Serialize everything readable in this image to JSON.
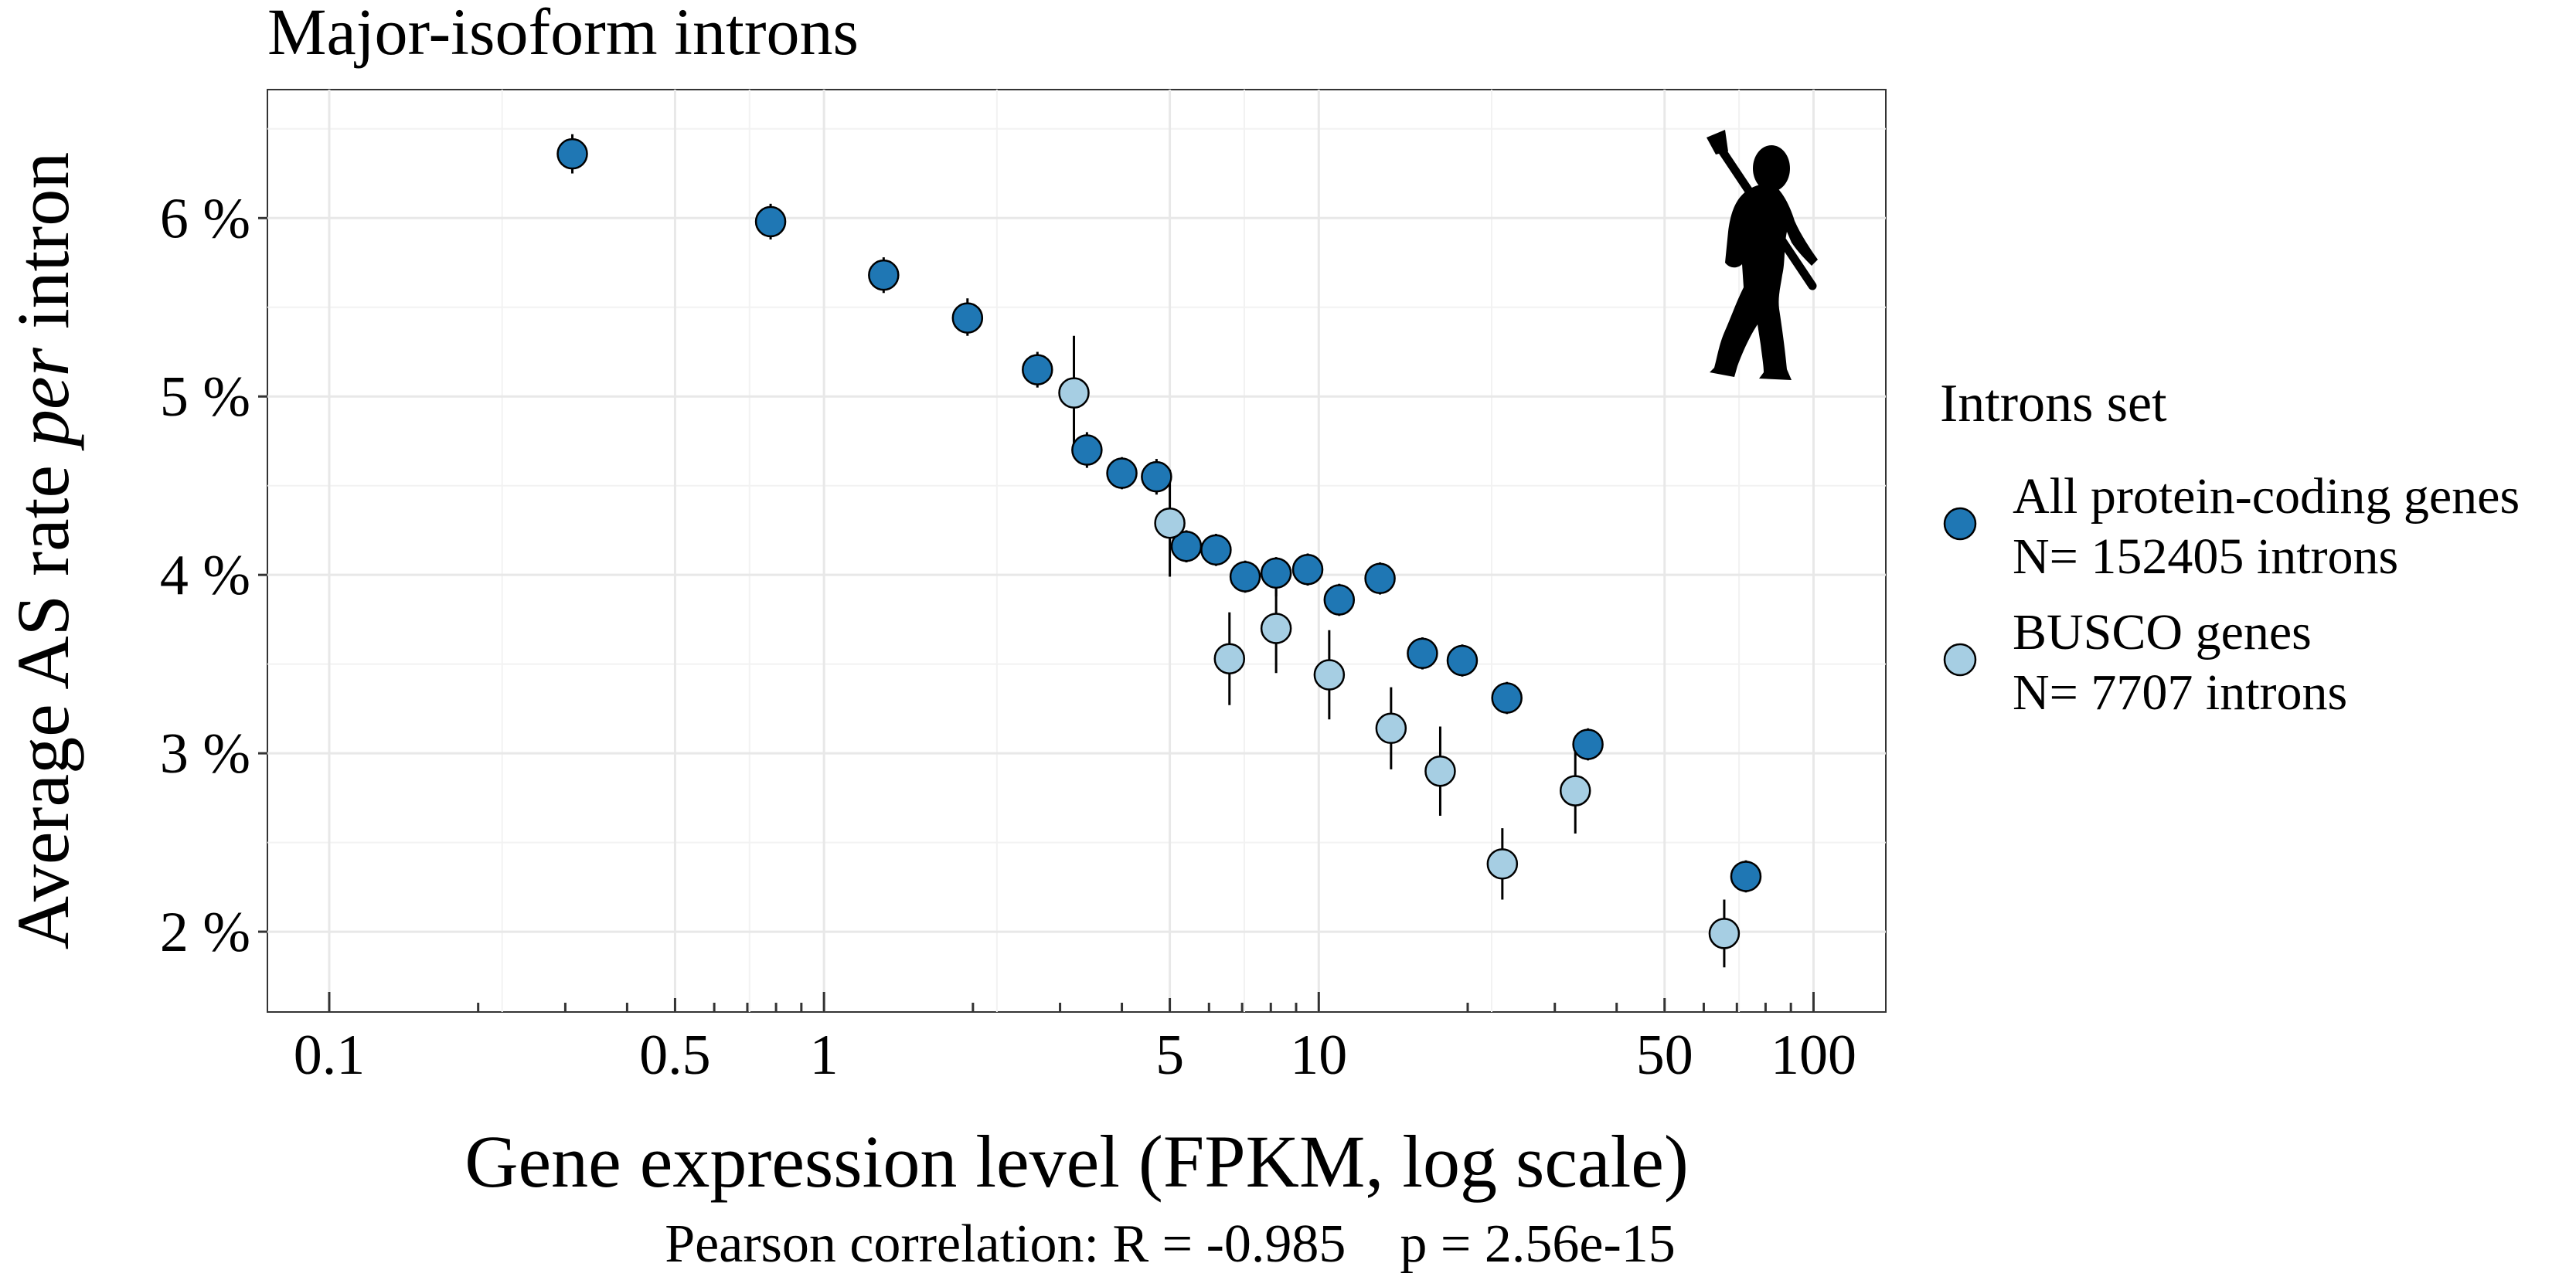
{
  "chart_data": {
    "type": "scatter",
    "title": "Major-isoform introns",
    "xlabel": "Gene expression level (FPKM, log scale)",
    "ylabel_parts": [
      "Average AS rate ",
      "per",
      " intron"
    ],
    "x_scale": "log10",
    "xlim": [
      0.075,
      140
    ],
    "ylim": [
      1.55,
      6.72
    ],
    "x_ticks": [
      0.1,
      0.5,
      1,
      5,
      10,
      50,
      100
    ],
    "x_tick_labels": [
      "0.1",
      "0.5",
      "1",
      "5",
      "10",
      "50",
      "100"
    ],
    "y_ticks": [
      2,
      3,
      4,
      5,
      6
    ],
    "y_tick_labels": [
      "2 %",
      "3 %",
      "4 %",
      "5 %",
      "6 %"
    ],
    "grid": true,
    "legend_position": "right",
    "legend_title": "Introns set",
    "footnote": "Pearson correlation: R = -0.985    p = 2.56e-15",
    "series": [
      {
        "name": "All protein-coding genes",
        "legend_lines": [
          "All protein-coding genes",
          "N= 152405 introns"
        ],
        "color": "#1f77b4",
        "points": [
          {
            "x": 0.31,
            "y": 6.36,
            "lo": 6.25,
            "hi": 6.47
          },
          {
            "x": 0.78,
            "y": 5.98,
            "lo": 5.88,
            "hi": 6.08
          },
          {
            "x": 1.32,
            "y": 5.68,
            "lo": 5.58,
            "hi": 5.78
          },
          {
            "x": 1.95,
            "y": 5.44,
            "lo": 5.34,
            "hi": 5.55
          },
          {
            "x": 2.7,
            "y": 5.15,
            "lo": 5.05,
            "hi": 5.25
          },
          {
            "x": 3.4,
            "y": 4.7,
            "lo": 4.6,
            "hi": 4.8
          },
          {
            "x": 4.0,
            "y": 4.57,
            "lo": 4.48,
            "hi": 4.66
          },
          {
            "x": 4.7,
            "y": 4.55,
            "lo": 4.45,
            "hi": 4.65
          },
          {
            "x": 5.4,
            "y": 4.16,
            "lo": 4.07,
            "hi": 4.25
          },
          {
            "x": 6.2,
            "y": 4.14,
            "lo": 4.05,
            "hi": 4.23
          },
          {
            "x": 7.1,
            "y": 3.99,
            "lo": 3.9,
            "hi": 4.08
          },
          {
            "x": 8.2,
            "y": 4.01,
            "lo": 3.88,
            "hi": 4.1
          },
          {
            "x": 9.5,
            "y": 4.03,
            "lo": 3.94,
            "hi": 4.12
          },
          {
            "x": 11.0,
            "y": 3.86,
            "lo": 3.77,
            "hi": 3.95
          },
          {
            "x": 13.3,
            "y": 3.98,
            "lo": 3.89,
            "hi": 4.07
          },
          {
            "x": 16.2,
            "y": 3.56,
            "lo": 3.47,
            "hi": 3.65
          },
          {
            "x": 19.5,
            "y": 3.52,
            "lo": 3.43,
            "hi": 3.61
          },
          {
            "x": 24.0,
            "y": 3.31,
            "lo": 3.22,
            "hi": 3.4
          },
          {
            "x": 35.0,
            "y": 3.05,
            "lo": 2.96,
            "hi": 3.14
          },
          {
            "x": 73.0,
            "y": 2.31,
            "lo": 2.22,
            "hi": 2.4
          }
        ]
      },
      {
        "name": "BUSCO genes",
        "legend_lines": [
          "BUSCO genes",
          "N= 7707 introns"
        ],
        "color": "#a6cee3",
        "points": [
          {
            "x": 3.2,
            "y": 5.02,
            "lo": 4.7,
            "hi": 5.34
          },
          {
            "x": 5.0,
            "y": 4.29,
            "lo": 3.99,
            "hi": 4.59
          },
          {
            "x": 6.6,
            "y": 3.53,
            "lo": 3.27,
            "hi": 3.79
          },
          {
            "x": 8.2,
            "y": 3.7,
            "lo": 3.45,
            "hi": 3.95
          },
          {
            "x": 10.5,
            "y": 3.44,
            "lo": 3.19,
            "hi": 3.69
          },
          {
            "x": 14.0,
            "y": 3.14,
            "lo": 2.91,
            "hi": 3.37
          },
          {
            "x": 17.6,
            "y": 2.9,
            "lo": 2.65,
            "hi": 3.15
          },
          {
            "x": 23.5,
            "y": 2.38,
            "lo": 2.18,
            "hi": 2.58
          },
          {
            "x": 33.0,
            "y": 2.79,
            "lo": 2.55,
            "hi": 3.03
          },
          {
            "x": 66.0,
            "y": 1.99,
            "lo": 1.8,
            "hi": 2.18
          }
        ]
      }
    ],
    "icon": "neanderthal-silhouette-icon"
  }
}
